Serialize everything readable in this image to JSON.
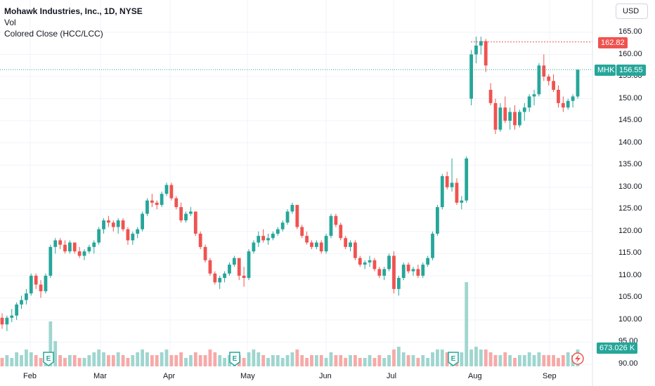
{
  "legend": {
    "title": "Mohawk Industries, Inc., 1D, NYSE",
    "volume": "Vol",
    "indicator": "Colored Close (HCC/LCC)"
  },
  "currency_button": "USD",
  "price_axis": {
    "ticks": [
      "165.00",
      "160.00",
      "155.00",
      "150.00",
      "145.00",
      "140.00",
      "135.00",
      "130.00",
      "125.00",
      "120.00",
      "115.00",
      "110.00",
      "105.00",
      "100.00",
      "95.00",
      "90.00"
    ],
    "high_label": "162.82",
    "symbol_tag": "MHK",
    "last_price_label": "156.55",
    "volume_label": "673.026 K"
  },
  "time_axis": {
    "months": [
      "Feb",
      "Mar",
      "Apr",
      "May",
      "Jun",
      "Jul",
      "Aug",
      "Sep"
    ]
  },
  "events": {
    "earnings_marker": "E"
  },
  "colors": {
    "up": "#26a69a",
    "down": "#ef5350",
    "hcc": "#f7c26b",
    "volume_up": "#9fd6cf",
    "volume_down": "#f7a9a7",
    "grid": "#f0f3fa",
    "last_price_line": "#26a69a",
    "high_line": "#ef5350"
  },
  "chart_data": {
    "type": "candlestick",
    "symbol": "MHK",
    "interval": "1D",
    "exchange": "NYSE",
    "ylim": [
      88,
      167
    ],
    "high_marker": 162.82,
    "last_close": 156.55,
    "last_volume": "673.026 K",
    "ohlc_approx": [
      [
        100.5,
        101.5,
        98,
        99
      ],
      [
        99,
        101,
        97.5,
        100.5
      ],
      [
        100.5,
        102.5,
        99.5,
        101
      ],
      [
        101,
        104,
        100,
        103.5
      ],
      [
        103.5,
        105.5,
        102.5,
        104.5
      ],
      [
        104.5,
        107,
        103.5,
        106
      ],
      [
        106,
        110.5,
        105.5,
        110
      ],
      [
        110,
        110.5,
        107,
        108
      ],
      [
        108,
        109,
        105,
        106.5
      ],
      [
        106.5,
        110.5,
        106,
        110
      ],
      [
        110,
        117,
        109.5,
        116.5
      ],
      [
        116.5,
        118.5,
        115,
        118
      ],
      [
        118,
        118.5,
        116,
        117
      ],
      [
        117,
        118,
        115,
        115.5
      ],
      [
        115.5,
        118,
        115,
        117.5
      ],
      [
        117.5,
        117,
        115,
        115.5
      ],
      [
        115.5,
        116.5,
        114,
        114.5
      ],
      [
        114.5,
        116,
        113.5,
        115.5
      ],
      [
        115.5,
        117,
        115,
        116.5
      ],
      [
        116.5,
        118,
        115,
        117.5
      ],
      [
        117.5,
        121,
        117,
        120.5
      ],
      [
        120.5,
        123,
        119.5,
        122.5
      ],
      [
        122.5,
        123.5,
        121,
        122
      ],
      [
        122,
        122.5,
        120,
        121
      ],
      [
        121,
        123,
        119.5,
        122.5
      ],
      [
        122.5,
        123,
        120,
        120.5
      ],
      [
        120.5,
        121,
        117,
        118
      ],
      [
        118,
        120,
        117,
        119.5
      ],
      [
        119.5,
        121,
        118.5,
        120.5
      ],
      [
        120.5,
        124.5,
        120,
        124
      ],
      [
        124,
        127.5,
        123.5,
        127
      ],
      [
        127,
        128.5,
        125.5,
        126.5
      ],
      [
        126.5,
        127,
        125,
        126
      ],
      [
        126,
        129,
        125.5,
        128.5
      ],
      [
        128.5,
        131,
        128,
        130.5
      ],
      [
        130.5,
        131,
        127,
        127.5
      ],
      [
        127.5,
        128,
        125,
        125.5
      ],
      [
        125.5,
        126.5,
        122,
        122.5
      ],
      [
        122.5,
        124.5,
        122,
        124
      ],
      [
        124,
        125.5,
        123.5,
        124.5
      ],
      [
        124.5,
        122,
        119,
        119.5
      ],
      [
        119.5,
        120,
        116,
        116.5
      ],
      [
        116.5,
        117,
        113,
        113.5
      ],
      [
        113.5,
        114,
        110,
        110.5
      ],
      [
        110.5,
        111,
        108,
        108.5
      ],
      [
        108.5,
        110,
        107,
        109.5
      ],
      [
        109.5,
        111,
        108.5,
        110.5
      ],
      [
        110.5,
        113,
        110,
        112.5
      ],
      [
        112.5,
        114.5,
        112,
        114
      ],
      [
        114,
        112.5,
        109,
        110
      ],
      [
        110,
        112,
        107.5,
        109.5
      ],
      [
        109.5,
        116,
        109,
        115.5
      ],
      [
        115.5,
        118,
        115,
        117.5
      ],
      [
        117.5,
        120,
        116.5,
        119
      ],
      [
        119,
        120.5,
        117.5,
        118
      ],
      [
        118,
        119.5,
        117,
        118.5
      ],
      [
        118.5,
        120,
        118,
        119.5
      ],
      [
        119.5,
        121,
        119,
        120.5
      ],
      [
        120.5,
        122.5,
        120,
        122
      ],
      [
        122,
        125,
        121.5,
        124.5
      ],
      [
        124.5,
        126.5,
        124,
        126
      ],
      [
        126,
        124.5,
        120.5,
        121
      ],
      [
        121,
        121.5,
        118.5,
        119
      ],
      [
        119,
        120,
        117,
        117.5
      ],
      [
        117.5,
        118,
        116,
        116.5
      ],
      [
        116.5,
        118,
        116,
        117.5
      ],
      [
        117.5,
        118,
        115,
        115.5
      ],
      [
        115.5,
        119.5,
        115,
        119
      ],
      [
        119,
        124,
        118.5,
        123.5
      ],
      [
        123.5,
        124,
        121,
        121.5
      ],
      [
        121.5,
        122,
        118,
        118.5
      ],
      [
        118.5,
        119,
        116,
        116.5
      ],
      [
        116.5,
        118,
        115.5,
        117.5
      ],
      [
        117.5,
        118,
        113.5,
        114
      ],
      [
        114,
        114.5,
        112,
        112.5
      ],
      [
        112.5,
        113.5,
        111.5,
        113
      ],
      [
        113,
        114.5,
        112,
        113.5
      ],
      [
        113.5,
        114,
        111,
        111.5
      ],
      [
        111.5,
        112,
        109.5,
        110
      ],
      [
        110,
        112,
        109,
        111.5
      ],
      [
        111.5,
        115,
        111,
        114.5
      ],
      [
        114.5,
        115.5,
        106,
        107
      ],
      [
        107,
        110,
        105.5,
        109.5
      ],
      [
        109.5,
        113,
        109,
        112.5
      ],
      [
        112.5,
        113,
        110.5,
        111
      ],
      [
        111,
        112,
        110,
        111.5
      ],
      [
        111.5,
        112.5,
        109.5,
        110
      ],
      [
        110,
        113,
        109.5,
        112.5
      ],
      [
        112.5,
        114.5,
        112,
        114
      ],
      [
        114,
        120,
        113.5,
        119.5
      ],
      [
        119.5,
        126,
        119,
        125.5
      ],
      [
        125.5,
        133,
        125,
        132.5
      ],
      [
        132.5,
        133.5,
        129.5,
        130
      ],
      [
        130,
        136.5,
        129,
        131
      ],
      [
        131,
        132,
        126,
        126.5
      ],
      [
        126.5,
        128,
        125,
        127
      ],
      [
        127,
        137,
        126.5,
        136.5
      ],
      [
        150,
        161,
        148.5,
        160
      ],
      [
        160,
        164,
        158,
        162
      ],
      [
        162,
        164,
        160,
        163
      ],
      [
        163,
        163.5,
        156,
        157.5
      ],
      [
        152,
        153.5,
        148.5,
        149
      ],
      [
        149,
        150,
        142,
        143
      ],
      [
        143,
        149,
        142.5,
        148
      ],
      [
        148,
        150.5,
        144.5,
        145
      ],
      [
        145,
        148,
        143,
        147
      ],
      [
        147,
        148.5,
        143,
        144
      ],
      [
        144,
        147.5,
        143.5,
        147
      ],
      [
        147,
        149,
        145,
        148
      ],
      [
        148,
        151,
        147,
        150.5
      ],
      [
        150.5,
        152,
        148.5,
        151
      ],
      [
        151,
        158,
        150.5,
        157.5
      ],
      [
        157.5,
        160,
        154,
        155
      ],
      [
        155,
        155.5,
        153,
        154
      ],
      [
        154,
        155.5,
        151.5,
        152
      ],
      [
        152,
        153,
        148,
        149
      ],
      [
        149,
        150.5,
        147,
        148
      ],
      [
        148,
        150,
        147.5,
        149.5
      ],
      [
        149.5,
        151,
        148,
        150.5
      ],
      [
        150.5,
        156,
        150,
        156.55
      ]
    ],
    "volume_approx": [
      3,
      4,
      3,
      5,
      4,
      6,
      5,
      4,
      3,
      4,
      16,
      9,
      4,
      3,
      4,
      4,
      3,
      3,
      4,
      5,
      6,
      5,
      4,
      4,
      5,
      4,
      3,
      4,
      5,
      6,
      5,
      4,
      4,
      5,
      6,
      4,
      4,
      5,
      3,
      4,
      5,
      4,
      4,
      6,
      5,
      4,
      3,
      4,
      5,
      4,
      3,
      5,
      6,
      5,
      4,
      3,
      4,
      4,
      3,
      4,
      5,
      6,
      4,
      3,
      4,
      4,
      4,
      3,
      5,
      4,
      4,
      3,
      4,
      4,
      3,
      3,
      4,
      3,
      4,
      3,
      4,
      6,
      7,
      5,
      4,
      4,
      3,
      4,
      3,
      5,
      6,
      6,
      5,
      4,
      4,
      5,
      30,
      6,
      7,
      6,
      6,
      5,
      4,
      4,
      5,
      4,
      3,
      4,
      4,
      5,
      4,
      5,
      4,
      4,
      4,
      3,
      4,
      5,
      4,
      6
    ]
  }
}
